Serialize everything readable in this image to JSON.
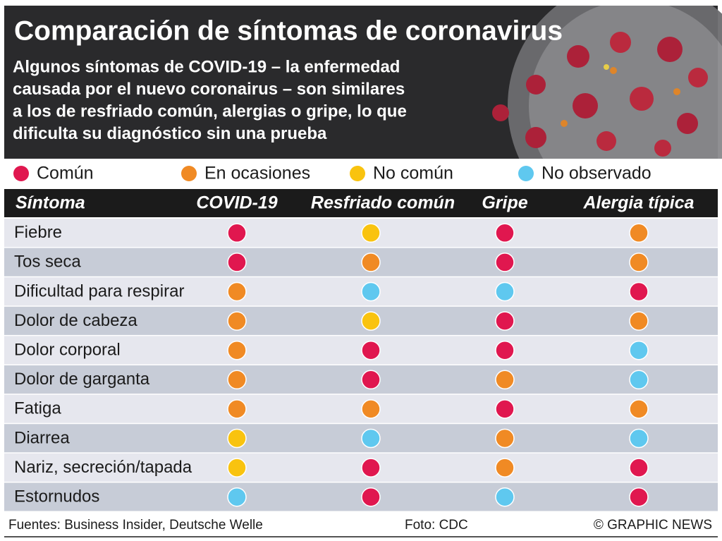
{
  "header": {
    "title": "Comparación de síntomas de coronavirus",
    "subtitle": [
      "Algunos síntomas de COVID-19 – la enfermedad",
      "causada por el nuevo coronairus – son similares",
      "a los de resfriado común, alergias o gripe, lo que",
      "dificulta su diagnóstico sin una prueba"
    ]
  },
  "legend": [
    {
      "label": "Común",
      "color": "#e0174f"
    },
    {
      "label": "En ocasiones",
      "color": "#f08a24"
    },
    {
      "label": "No común",
      "color": "#f9c30f"
    },
    {
      "label": "No observado",
      "color": "#5fc8ef"
    }
  ],
  "table": {
    "columns": [
      "Síntoma",
      "COVID-19",
      "Resfriado común",
      "Gripe",
      "Alergia típica"
    ],
    "rows": [
      {
        "label": "Fiebre",
        "cells": [
          0,
          2,
          0,
          1
        ]
      },
      {
        "label": "Tos seca",
        "cells": [
          0,
          1,
          0,
          1
        ]
      },
      {
        "label": "Dificultad para respirar",
        "cells": [
          1,
          3,
          3,
          0
        ]
      },
      {
        "label": "Dolor de cabeza",
        "cells": [
          1,
          2,
          0,
          1
        ]
      },
      {
        "label": "Dolor corporal",
        "cells": [
          1,
          0,
          0,
          3
        ]
      },
      {
        "label": "Dolor de garganta",
        "cells": [
          1,
          0,
          1,
          3
        ]
      },
      {
        "label": "Fatiga",
        "cells": [
          1,
          1,
          0,
          1
        ]
      },
      {
        "label": "Diarrea",
        "cells": [
          2,
          3,
          1,
          3
        ]
      },
      {
        "label": "Nariz, secreción/tapada",
        "cells": [
          2,
          0,
          1,
          0
        ]
      },
      {
        "label": "Estornudos",
        "cells": [
          3,
          0,
          3,
          0
        ]
      }
    ]
  },
  "footer": {
    "sources": "Fuentes: Business Insider, Deutsche Welle",
    "photo": "Foto: CDC",
    "credit": "© GRAPHIC NEWS"
  }
}
